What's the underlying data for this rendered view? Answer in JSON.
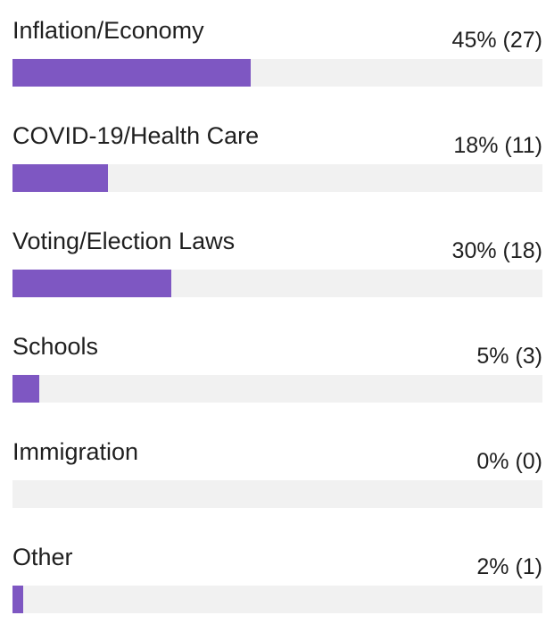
{
  "chart_data": {
    "type": "bar",
    "orientation": "horizontal",
    "categories": [
      "Inflation/Economy",
      "COVID-19/Health Care",
      "Voting/Election Laws",
      "Schools",
      "Immigration",
      "Other"
    ],
    "values": [
      45,
      18,
      30,
      5,
      0,
      2
    ],
    "counts": [
      27,
      11,
      18,
      3,
      0,
      1
    ],
    "value_labels": [
      "45% (27)",
      "18% (11)",
      "30% (18)",
      "5% (3)",
      "0% (0)",
      "2% (1)"
    ],
    "xlim": [
      0,
      100
    ],
    "grid": false,
    "legend": "none",
    "colors": {
      "bar": "#7e57c2",
      "track": "#f1f1f1",
      "text": "#1f1f1f"
    }
  }
}
